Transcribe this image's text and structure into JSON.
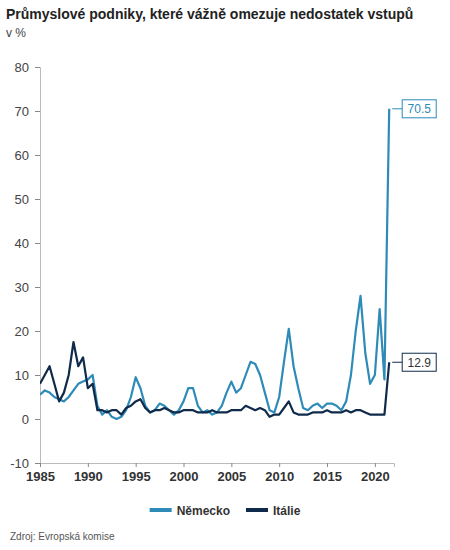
{
  "chart_data": {
    "type": "line",
    "title": "Průmyslové podniky, které vážně omezuje nedostatek vstupů",
    "subtitle": "v %",
    "source": "Zdroj: Evropská komise",
    "x": [
      1985,
      1985.5,
      1986,
      1986.5,
      1987,
      1987.5,
      1988,
      1988.5,
      1989,
      1989.5,
      1990,
      1990.5,
      1991,
      1991.5,
      1992,
      1992.5,
      1993,
      1993.5,
      1994,
      1994.5,
      1995,
      1995.5,
      1996,
      1996.5,
      1997,
      1997.5,
      1998,
      1998.5,
      1999,
      1999.5,
      2000,
      2000.5,
      2001,
      2001.5,
      2002,
      2002.5,
      2003,
      2003.5,
      2004,
      2004.5,
      2005,
      2005.5,
      2006,
      2006.5,
      2007,
      2007.5,
      2008,
      2008.5,
      2009,
      2009.5,
      2010,
      2010.5,
      2011,
      2011.5,
      2012,
      2012.5,
      2013,
      2013.5,
      2014,
      2014.5,
      2015,
      2015.5,
      2016,
      2016.5,
      2017,
      2017.5,
      2018,
      2018.5,
      2019,
      2019.5,
      2020,
      2020.5,
      2021,
      2021.5
    ],
    "series": [
      {
        "name": "Německo",
        "color": "#2e8bb8",
        "values": [
          5.5,
          6.5,
          6,
          5,
          4.5,
          4,
          5,
          6.5,
          8,
          8.5,
          9,
          10,
          3,
          1,
          2,
          0.5,
          0,
          0.5,
          2,
          5,
          9.5,
          7,
          3,
          1.5,
          2,
          3.5,
          3,
          2,
          1,
          2,
          4,
          7,
          7,
          3,
          1.5,
          2,
          1,
          1.5,
          3,
          6,
          8.5,
          6,
          7,
          10,
          13,
          12.5,
          10,
          6,
          2,
          1.5,
          5,
          13,
          20.5,
          12,
          7,
          2.5,
          2,
          3,
          3.5,
          2.5,
          3.5,
          3.5,
          3,
          2,
          4,
          10,
          20,
          28,
          15,
          8,
          10,
          25,
          9,
          70.5
        ]
      },
      {
        "name": "Itálie",
        "color": "#0f2a4a",
        "values": [
          8,
          10,
          12,
          8,
          4,
          6,
          10,
          17.5,
          12,
          14,
          7,
          8,
          2,
          2,
          1.5,
          2,
          2,
          1,
          2.5,
          3,
          4,
          4.5,
          2.5,
          1.5,
          2,
          2,
          2.5,
          2,
          1.5,
          1.5,
          2,
          2,
          2,
          1.5,
          1.5,
          1.5,
          2,
          1.5,
          1.5,
          1.5,
          2,
          2,
          2,
          3,
          2.5,
          2,
          2.5,
          2,
          0.5,
          1,
          1,
          2.5,
          4,
          1.5,
          1,
          1,
          1,
          1.5,
          1.5,
          1.5,
          2,
          1.5,
          1.5,
          1.5,
          2,
          1.5,
          2,
          2,
          1.5,
          1,
          1,
          1,
          1,
          12.9
        ]
      }
    ],
    "xlim": [
      1985,
      2022
    ],
    "xticks": [
      1985,
      1990,
      1995,
      2000,
      2005,
      2010,
      2015,
      2020
    ],
    "ylim": [
      -10,
      80
    ],
    "yticks": [
      -10,
      0,
      10,
      20,
      30,
      40,
      50,
      60,
      70,
      80
    ],
    "grid": false,
    "legend": "bottom"
  }
}
